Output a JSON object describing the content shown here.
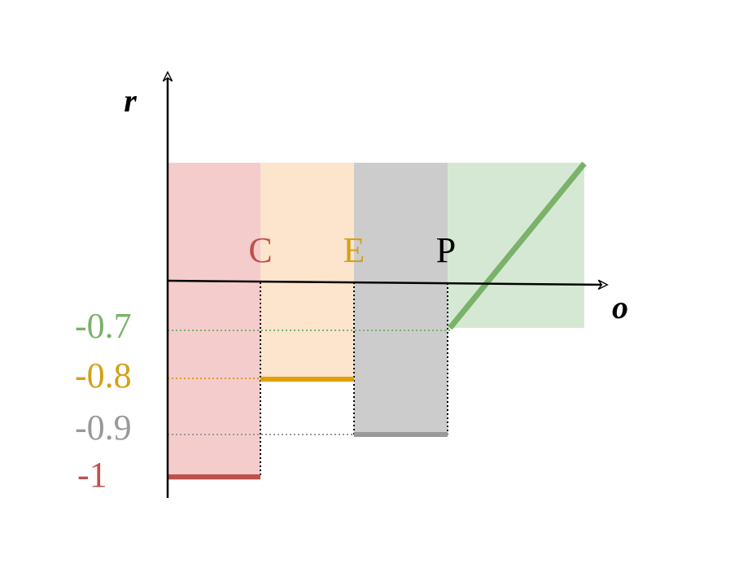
{
  "axes": {
    "y_label": "r",
    "x_label": "o"
  },
  "points": [
    {
      "label": "C"
    },
    {
      "label": "E"
    },
    {
      "label": "P"
    }
  ],
  "levels": [
    {
      "label": "-0.7"
    },
    {
      "label": "-0.8"
    },
    {
      "label": "-0.9"
    },
    {
      "label": "-1"
    }
  ]
}
